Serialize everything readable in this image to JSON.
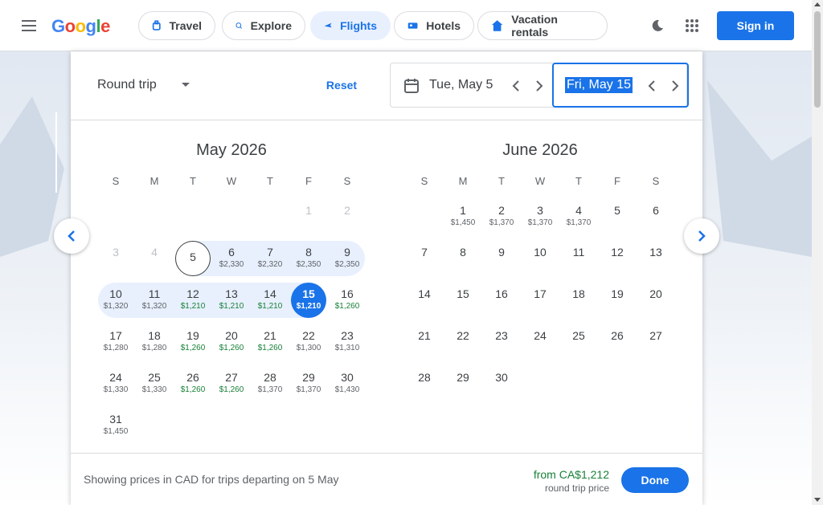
{
  "header": {
    "logo_text": "Google",
    "logo_colors": [
      "#4285f4",
      "#ea4335",
      "#fbbc05",
      "#4285f4",
      "#34a853",
      "#ea4335"
    ],
    "nav": [
      {
        "label": "Travel",
        "icon": "travel-icon",
        "active": false
      },
      {
        "label": "Explore",
        "icon": "explore-icon",
        "active": false
      },
      {
        "label": "Flights",
        "icon": "flight-icon",
        "active": true
      },
      {
        "label": "Hotels",
        "icon": "hotel-icon",
        "active": false
      },
      {
        "label": "Vacation rentals",
        "icon": "home-icon",
        "active": false
      }
    ],
    "signin_label": "Sign in"
  },
  "controls": {
    "trip_type": "Round trip",
    "reset_label": "Reset",
    "departure": "Tue, May 5",
    "return": "Fri, May 15"
  },
  "weekdays": [
    "S",
    "M",
    "T",
    "W",
    "T",
    "F",
    "S"
  ],
  "calendars": [
    {
      "title": "May 2026",
      "start_weekday": 5,
      "days": [
        {
          "d": "1",
          "p": "",
          "past": true
        },
        {
          "d": "2",
          "p": "",
          "past": true
        },
        {
          "d": "3",
          "p": "",
          "past": true
        },
        {
          "d": "4",
          "p": "",
          "past": true
        },
        {
          "d": "5",
          "p": "",
          "departure": true
        },
        {
          "d": "6",
          "p": "$2,330"
        },
        {
          "d": "7",
          "p": "$2,320"
        },
        {
          "d": "8",
          "p": "$2,350"
        },
        {
          "d": "9",
          "p": "$2,350"
        },
        {
          "d": "10",
          "p": "$1,320"
        },
        {
          "d": "11",
          "p": "$1,320"
        },
        {
          "d": "12",
          "p": "$1,210",
          "green": true
        },
        {
          "d": "13",
          "p": "$1,210",
          "green": true
        },
        {
          "d": "14",
          "p": "$1,210",
          "green": true
        },
        {
          "d": "15",
          "p": "$1,210",
          "selected": true
        },
        {
          "d": "16",
          "p": "$1,260",
          "green": true
        },
        {
          "d": "17",
          "p": "$1,280"
        },
        {
          "d": "18",
          "p": "$1,280"
        },
        {
          "d": "19",
          "p": "$1,260",
          "green": true
        },
        {
          "d": "20",
          "p": "$1,260",
          "green": true
        },
        {
          "d": "21",
          "p": "$1,260",
          "green": true
        },
        {
          "d": "22",
          "p": "$1,300"
        },
        {
          "d": "23",
          "p": "$1,310"
        },
        {
          "d": "24",
          "p": "$1,330"
        },
        {
          "d": "25",
          "p": "$1,330"
        },
        {
          "d": "26",
          "p": "$1,260",
          "green": true
        },
        {
          "d": "27",
          "p": "$1,260",
          "green": true
        },
        {
          "d": "28",
          "p": "$1,370"
        },
        {
          "d": "29",
          "p": "$1,370"
        },
        {
          "d": "30",
          "p": "$1,430"
        },
        {
          "d": "31",
          "p": "$1,450"
        }
      ]
    },
    {
      "title": "June 2026",
      "start_weekday": 1,
      "days": [
        {
          "d": "1",
          "p": "$1,450"
        },
        {
          "d": "2",
          "p": "$1,370"
        },
        {
          "d": "3",
          "p": "$1,370"
        },
        {
          "d": "4",
          "p": "$1,370"
        },
        {
          "d": "5",
          "p": ""
        },
        {
          "d": "6",
          "p": ""
        },
        {
          "d": "7",
          "p": ""
        },
        {
          "d": "8",
          "p": ""
        },
        {
          "d": "9",
          "p": ""
        },
        {
          "d": "10",
          "p": ""
        },
        {
          "d": "11",
          "p": ""
        },
        {
          "d": "12",
          "p": ""
        },
        {
          "d": "13",
          "p": ""
        },
        {
          "d": "14",
          "p": ""
        },
        {
          "d": "15",
          "p": ""
        },
        {
          "d": "16",
          "p": ""
        },
        {
          "d": "17",
          "p": ""
        },
        {
          "d": "18",
          "p": ""
        },
        {
          "d": "19",
          "p": ""
        },
        {
          "d": "20",
          "p": ""
        },
        {
          "d": "21",
          "p": ""
        },
        {
          "d": "22",
          "p": ""
        },
        {
          "d": "23",
          "p": ""
        },
        {
          "d": "24",
          "p": ""
        },
        {
          "d": "25",
          "p": ""
        },
        {
          "d": "26",
          "p": ""
        },
        {
          "d": "27",
          "p": ""
        },
        {
          "d": "28",
          "p": ""
        },
        {
          "d": "29",
          "p": ""
        },
        {
          "d": "30",
          "p": ""
        }
      ]
    }
  ],
  "footer": {
    "note": "Showing prices in CAD for trips departing on 5 May",
    "price": "from CA$1,212",
    "price_sub": "round trip price",
    "done_label": "Done"
  },
  "colors": {
    "accent": "#1a73e8",
    "range": "#e8f0fe",
    "low_price": "#188038"
  }
}
